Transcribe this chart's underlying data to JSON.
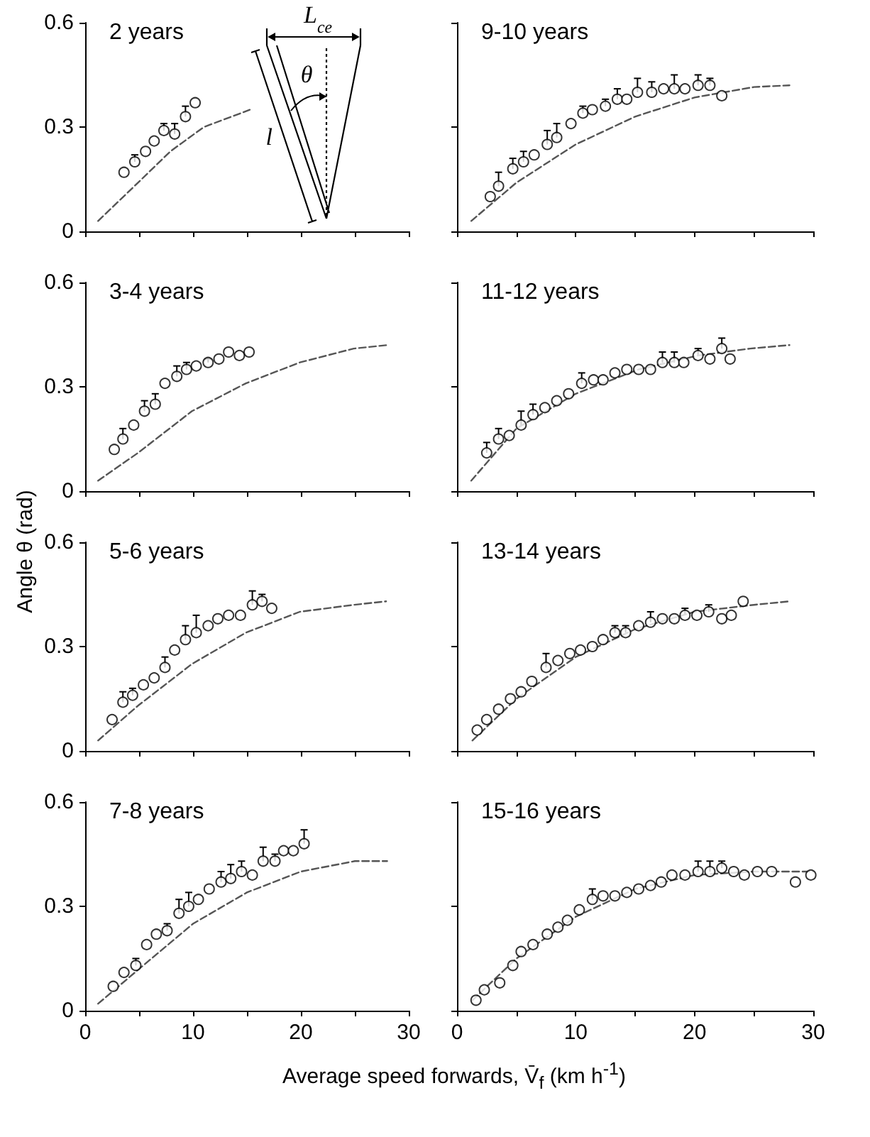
{
  "chart_data": [
    {
      "type": "scatter",
      "title": "2 years",
      "annotations": [
        "L$_{ce}$",
        "θ",
        "l"
      ],
      "xlim": [
        0,
        30
      ],
      "xticks": [
        0,
        {
          "value": 5,
          "label": null
        },
        10,
        {
          "value": 15,
          "label": null
        },
        20,
        {
          "value": 25,
          "label": null
        },
        30
      ],
      "ylim": [
        0,
        0.6
      ],
      "yticks": [
        0,
        0.3,
        0.6
      ],
      "tick_labels": "y",
      "series": [
        {
          "type": "scatter",
          "marker": "circle",
          "color": "#000000",
          "x": [
            3.6,
            4.6,
            5.6,
            6.4,
            7.3,
            8.3,
            9.3,
            10.2
          ],
          "values": [
            0.17,
            0.2,
            0.23,
            0.26,
            0.29,
            0.28,
            0.33,
            0.37
          ],
          "errors": [
            null,
            [
              0.2,
              0.22
            ],
            null,
            null,
            [
              0.29,
              0.31
            ],
            [
              0.28,
              0.31
            ],
            [
              0.33,
              0.36
            ],
            null
          ]
        },
        {
          "type": "line",
          "marker": "none",
          "line_style": "dashed",
          "color": "#555555",
          "x": [
            1.2,
            4.9,
            7.9,
            11,
            15.3
          ],
          "values": [
            0.03,
            0.14,
            0.23,
            0.3,
            0.35
          ]
        }
      ]
    },
    {
      "type": "scatter",
      "title": "9-10 years",
      "xlim": [
        0,
        30
      ],
      "xticks": [
        0,
        {
          "value": 5,
          "label": null
        },
        10,
        {
          "value": 15,
          "label": null
        },
        20,
        {
          "value": 25,
          "label": null
        },
        30
      ],
      "ylim": [
        0,
        0.6
      ],
      "yticks": [
        0,
        0.3,
        0.6
      ],
      "tick_labels": false,
      "series": [
        {
          "type": "scatter",
          "marker": "circle",
          "color": "#000000",
          "x": [
            2.8,
            3.5,
            4.7,
            5.6,
            6.5,
            7.6,
            8.4,
            9.6,
            10.6,
            11.4,
            12.5,
            13.5,
            14.3,
            15.2,
            16.4,
            17.4,
            18.3,
            19.2,
            20.3,
            21.3,
            22.3
          ],
          "values": [
            0.1,
            0.13,
            0.18,
            0.2,
            0.22,
            0.25,
            0.27,
            0.31,
            0.34,
            0.35,
            0.36,
            0.38,
            0.38,
            0.4,
            0.4,
            0.41,
            0.41,
            0.41,
            0.42,
            0.42,
            0.39
          ],
          "errors": [
            null,
            [
              0.13,
              0.17
            ],
            [
              0.18,
              0.21
            ],
            [
              0.2,
              0.23
            ],
            null,
            [
              0.25,
              0.29
            ],
            [
              0.27,
              0.31
            ],
            null,
            [
              0.34,
              0.36
            ],
            null,
            [
              0.36,
              0.38
            ],
            [
              0.38,
              0.41
            ],
            null,
            [
              0.4,
              0.44
            ],
            [
              0.4,
              0.43
            ],
            null,
            [
              0.41,
              0.45
            ],
            null,
            [
              0.42,
              0.45
            ],
            [
              0.42,
              0.44
            ],
            null
          ]
        },
        {
          "type": "line",
          "marker": "none",
          "line_style": "dashed",
          "color": "#555555",
          "x": [
            1.2,
            5,
            10,
            15,
            20,
            25,
            28
          ],
          "values": [
            0.03,
            0.14,
            0.25,
            0.33,
            0.385,
            0.415,
            0.42
          ]
        }
      ]
    },
    {
      "type": "scatter",
      "title": "3-4 years",
      "xlim": [
        0,
        30
      ],
      "xticks": [
        0,
        {
          "value": 5,
          "label": null
        },
        10,
        {
          "value": 15,
          "label": null
        },
        20,
        {
          "value": 25,
          "label": null
        },
        30
      ],
      "ylim": [
        0,
        0.6
      ],
      "yticks": [
        0,
        0.3,
        0.6
      ],
      "tick_labels": "y",
      "series": [
        {
          "type": "scatter",
          "marker": "circle",
          "color": "#000000",
          "x": [
            2.7,
            3.5,
            4.5,
            5.5,
            6.5,
            7.4,
            8.5,
            9.4,
            10.3,
            11.4,
            12.4,
            13.3,
            14.3,
            15.2
          ],
          "values": [
            0.12,
            0.15,
            0.19,
            0.23,
            0.25,
            0.31,
            0.33,
            0.35,
            0.36,
            0.37,
            0.38,
            0.4,
            0.39,
            0.4
          ],
          "errors": [
            null,
            [
              0.15,
              0.18
            ],
            null,
            [
              0.23,
              0.26
            ],
            [
              0.25,
              0.28
            ],
            null,
            [
              0.33,
              0.36
            ],
            [
              0.35,
              0.37
            ],
            null,
            [
              0.37,
              0.38
            ],
            null,
            null,
            null,
            null
          ]
        },
        {
          "type": "line",
          "marker": "none",
          "line_style": "dashed",
          "color": "#555555",
          "x": [
            1.2,
            4.9,
            9.9,
            14.9,
            19.9,
            24.9,
            28
          ],
          "values": [
            0.03,
            0.11,
            0.23,
            0.31,
            0.37,
            0.41,
            0.42
          ]
        }
      ]
    },
    {
      "type": "scatter",
      "title": "11-12 years",
      "xlim": [
        0,
        30
      ],
      "xticks": [
        0,
        {
          "value": 5,
          "label": null
        },
        10,
        {
          "value": 15,
          "label": null
        },
        20,
        {
          "value": 25,
          "label": null
        },
        30
      ],
      "ylim": [
        0,
        0.6
      ],
      "yticks": [
        0,
        0.3,
        0.6
      ],
      "tick_labels": false,
      "series": [
        {
          "type": "scatter",
          "marker": "circle",
          "color": "#000000",
          "x": [
            2.5,
            3.5,
            4.4,
            5.4,
            6.4,
            7.4,
            8.4,
            9.4,
            10.5,
            11.5,
            12.3,
            13.3,
            14.3,
            15.3,
            16.3,
            17.3,
            18.3,
            19.1,
            20.3,
            21.3,
            22.3,
            23
          ],
          "values": [
            0.11,
            0.15,
            0.16,
            0.19,
            0.22,
            0.24,
            0.26,
            0.28,
            0.31,
            0.32,
            0.32,
            0.34,
            0.35,
            0.35,
            0.35,
            0.37,
            0.37,
            0.37,
            0.39,
            0.38,
            0.41,
            0.38
          ],
          "errors": [
            [
              0.11,
              0.14
            ],
            [
              0.15,
              0.18
            ],
            null,
            [
              0.19,
              0.23
            ],
            [
              0.22,
              0.25
            ],
            null,
            null,
            null,
            [
              0.31,
              0.34
            ],
            null,
            null,
            null,
            null,
            null,
            null,
            [
              0.37,
              0.4
            ],
            [
              0.37,
              0.4
            ],
            null,
            [
              0.39,
              0.41
            ],
            null,
            [
              0.41,
              0.44
            ],
            null
          ]
        },
        {
          "type": "line",
          "marker": "none",
          "line_style": "dashed",
          "color": "#555555",
          "x": [
            1.2,
            5,
            10,
            15.3,
            20.3,
            24.7,
            28
          ],
          "values": [
            0.03,
            0.18,
            0.28,
            0.35,
            0.39,
            0.41,
            0.42
          ]
        }
      ]
    },
    {
      "type": "scatter",
      "title": "5-6 years",
      "ylabel": "Angle θ (rad)",
      "xlim": [
        0,
        30
      ],
      "xticks": [
        0,
        {
          "value": 5,
          "label": null
        },
        10,
        {
          "value": 15,
          "label": null
        },
        20,
        {
          "value": 25,
          "label": null
        },
        30
      ],
      "ylim": [
        0,
        0.6
      ],
      "yticks": [
        0,
        0.3,
        0.6
      ],
      "tick_labels": "y",
      "series": [
        {
          "type": "scatter",
          "marker": "circle",
          "color": "#000000",
          "x": [
            2.5,
            3.5,
            4.4,
            5.4,
            6.4,
            7.4,
            8.3,
            9.3,
            10.3,
            11.4,
            12.3,
            13.3,
            14.4,
            15.5,
            16.4,
            17.3
          ],
          "values": [
            0.09,
            0.14,
            0.16,
            0.19,
            0.21,
            0.24,
            0.29,
            0.32,
            0.34,
            0.36,
            0.38,
            0.39,
            0.39,
            0.42,
            0.43,
            0.41
          ],
          "errors": [
            null,
            [
              0.14,
              0.17
            ],
            [
              0.16,
              0.18
            ],
            null,
            null,
            [
              0.24,
              0.27
            ],
            null,
            [
              0.32,
              0.36
            ],
            [
              0.34,
              0.39
            ],
            null,
            null,
            null,
            null,
            [
              0.42,
              0.46
            ],
            [
              0.43,
              0.45
            ],
            null
          ]
        },
        {
          "type": "line",
          "marker": "none",
          "line_style": "dashed",
          "color": "#555555",
          "x": [
            1.2,
            4.9,
            9.9,
            14.9,
            19.9,
            24.9,
            27.9
          ],
          "values": [
            0.03,
            0.13,
            0.25,
            0.34,
            0.4,
            0.42,
            0.43
          ]
        }
      ]
    },
    {
      "type": "scatter",
      "title": "13-14 years",
      "xlim": [
        0,
        30
      ],
      "xticks": [
        0,
        {
          "value": 5,
          "label": null
        },
        10,
        {
          "value": 15,
          "label": null
        },
        20,
        {
          "value": 25,
          "label": null
        },
        30
      ],
      "ylim": [
        0,
        0.6
      ],
      "yticks": [
        0,
        0.3,
        0.6
      ],
      "tick_labels": false,
      "series": [
        {
          "type": "scatter",
          "marker": "circle",
          "color": "#000000",
          "x": [
            1.7,
            2.5,
            3.5,
            4.5,
            5.4,
            6.3,
            7.5,
            8.5,
            9.5,
            10.4,
            11.4,
            12.3,
            13.3,
            14.2,
            15.3,
            16.3,
            17.3,
            18.3,
            19.2,
            20.2,
            21.2,
            22.3,
            23.1,
            24.1
          ],
          "values": [
            0.06,
            0.09,
            0.12,
            0.15,
            0.17,
            0.2,
            0.24,
            0.26,
            0.28,
            0.29,
            0.3,
            0.32,
            0.34,
            0.34,
            0.36,
            0.37,
            0.38,
            0.38,
            0.39,
            0.39,
            0.4,
            0.38,
            0.39,
            0.43
          ],
          "errors": [
            null,
            null,
            null,
            null,
            null,
            null,
            [
              0.24,
              0.28
            ],
            null,
            null,
            null,
            null,
            null,
            [
              0.34,
              0.36
            ],
            [
              0.34,
              0.36
            ],
            null,
            [
              0.37,
              0.4
            ],
            null,
            null,
            [
              0.39,
              0.41
            ],
            null,
            [
              0.4,
              0.42
            ],
            null,
            null,
            null
          ]
        },
        {
          "type": "line",
          "marker": "none",
          "line_style": "dashed",
          "color": "#555555",
          "x": [
            1.3,
            5,
            10,
            15,
            20,
            25,
            28
          ],
          "values": [
            0.03,
            0.15,
            0.27,
            0.35,
            0.4,
            0.42,
            0.43
          ]
        }
      ]
    },
    {
      "type": "scatter",
      "title": "7-8 years",
      "xlabel": "Average speed forwards, V̄$_{f}$ (km h$^{-1}$)",
      "xlim": [
        0,
        30
      ],
      "xticks": [
        0,
        {
          "value": 5,
          "label": null
        },
        10,
        {
          "value": 15,
          "label": null
        },
        20,
        {
          "value": 25,
          "label": null
        },
        30
      ],
      "ylim": [
        0,
        0.6
      ],
      "yticks": [
        0,
        0.3,
        0.6
      ],
      "series": [
        {
          "type": "scatter",
          "marker": "circle",
          "color": "#000000",
          "x": [
            2.6,
            3.6,
            4.7,
            5.7,
            6.6,
            7.6,
            8.7,
            9.6,
            10.5,
            11.5,
            12.6,
            13.5,
            14.5,
            15.5,
            16.5,
            17.6,
            18.4,
            19.3,
            20.3
          ],
          "values": [
            0.07,
            0.11,
            0.13,
            0.19,
            0.22,
            0.23,
            0.28,
            0.3,
            0.32,
            0.35,
            0.37,
            0.38,
            0.4,
            0.39,
            0.43,
            0.43,
            0.46,
            0.46,
            0.48
          ],
          "errors": [
            null,
            null,
            [
              0.13,
              0.15
            ],
            null,
            null,
            [
              0.23,
              0.25
            ],
            [
              0.28,
              0.32
            ],
            [
              0.3,
              0.34
            ],
            null,
            null,
            [
              0.37,
              0.4
            ],
            [
              0.38,
              0.42
            ],
            [
              0.4,
              0.43
            ],
            null,
            [
              0.43,
              0.47
            ],
            [
              0.43,
              0.45
            ],
            null,
            null,
            [
              0.48,
              0.52
            ]
          ]
        },
        {
          "type": "line",
          "marker": "none",
          "line_style": "dashed",
          "color": "#555555",
          "x": [
            1.2,
            5,
            10,
            15,
            20,
            25,
            28
          ],
          "values": [
            0.02,
            0.12,
            0.25,
            0.34,
            0.4,
            0.43,
            0.43
          ]
        }
      ]
    },
    {
      "type": "scatter",
      "title": "15-16 years",
      "xlim": [
        0,
        30
      ],
      "xticks": [
        0,
        {
          "value": 5,
          "label": null
        },
        10,
        {
          "value": 15,
          "label": null
        },
        20,
        {
          "value": 25,
          "label": null
        },
        30
      ],
      "ylim": [
        0,
        0.6
      ],
      "yticks": [
        0,
        0.3,
        0.6
      ],
      "tick_labels": "x",
      "series": [
        {
          "type": "scatter",
          "marker": "circle",
          "color": "#000000",
          "x": [
            1.6,
            2.3,
            3.6,
            4.7,
            5.4,
            6.4,
            7.6,
            8.5,
            9.3,
            10.3,
            11.4,
            12.3,
            13.3,
            14.3,
            15.3,
            16.3,
            17.2,
            18.1,
            19.2,
            20.3,
            21.3,
            22.3,
            23.3,
            24.2,
            25.3,
            26.5,
            28.5,
            29.8
          ],
          "values": [
            0.03,
            0.06,
            0.08,
            0.13,
            0.17,
            0.19,
            0.22,
            0.24,
            0.26,
            0.29,
            0.32,
            0.33,
            0.33,
            0.34,
            0.35,
            0.36,
            0.37,
            0.39,
            0.39,
            0.4,
            0.4,
            0.41,
            0.4,
            0.39,
            0.4,
            0.4,
            0.37,
            0.39
          ],
          "errors": [
            null,
            null,
            null,
            null,
            null,
            null,
            null,
            null,
            null,
            null,
            [
              0.32,
              0.35
            ],
            null,
            null,
            null,
            null,
            null,
            null,
            null,
            null,
            [
              0.4,
              0.43
            ],
            [
              0.4,
              0.43
            ],
            [
              0.41,
              0.43
            ],
            null,
            null,
            null,
            null,
            null,
            null
          ]
        },
        {
          "type": "line",
          "marker": "none",
          "line_style": "dashed",
          "color": "#555555",
          "x": [
            1.3,
            5,
            10,
            15,
            20,
            25,
            30
          ],
          "values": [
            0.03,
            0.15,
            0.27,
            0.35,
            0.39,
            0.4,
            0.4
          ]
        }
      ]
    }
  ]
}
